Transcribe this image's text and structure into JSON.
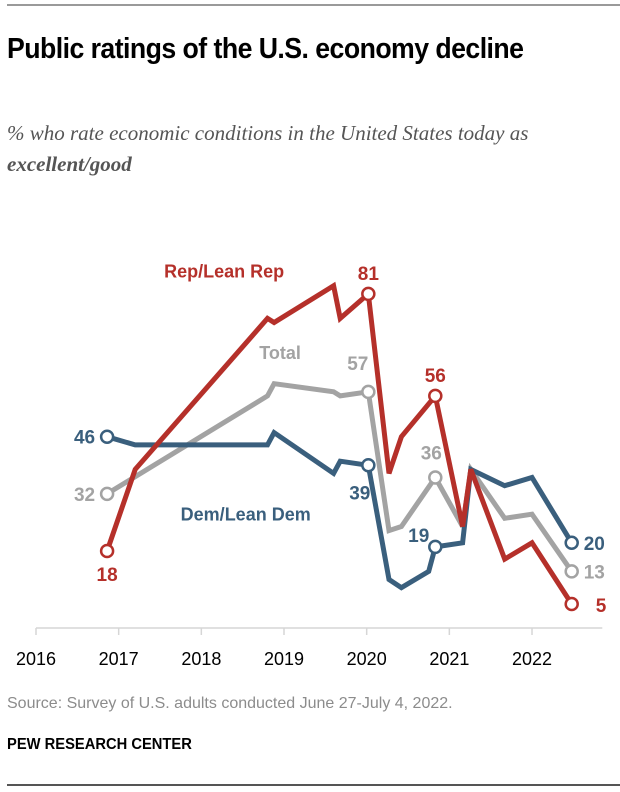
{
  "header": {
    "title": "Public ratings of the U.S. economy decline",
    "subtitle_plain": "% who rate economic conditions in the United States today as ",
    "subtitle_emphasis": "excellent/good"
  },
  "footer": {
    "source": "Source: Survey of U.S. adults conducted June 27-July 4, 2022.",
    "brand": "PEW RESEARCH CENTER"
  },
  "chart_data": {
    "type": "line",
    "title": "Public ratings of the U.S. economy decline",
    "subtitle": "% who rate economic conditions in the United States today as excellent/good",
    "xlabel": "",
    "ylabel": "",
    "x_ticks": [
      2016,
      2017,
      2018,
      2019,
      2020,
      2021,
      2022
    ],
    "x_tick_labels": [
      "2016",
      "2017",
      "2018",
      "2019",
      "2020",
      "2021",
      "2022"
    ],
    "xlim": [
      2016,
      2022.85
    ],
    "ylim": [
      0,
      90
    ],
    "grid": false,
    "legend": "inline labels on lines",
    "series": [
      {
        "name": "Rep/Lean Rep",
        "color": "#b5302a",
        "x": [
          2016.86,
          2017.2,
          2018.8,
          2018.88,
          2019.6,
          2019.68,
          2020.02,
          2020.27,
          2020.42,
          2020.83,
          2021.16,
          2021.26,
          2021.67,
          2022.0,
          2022.48
        ],
        "y": [
          18,
          38,
          75,
          74,
          83,
          75,
          81,
          37,
          46,
          56,
          24,
          38,
          16,
          20,
          5
        ],
        "markers": [
          0,
          6,
          9,
          14
        ],
        "labels": [
          {
            "point": 0,
            "text": "18",
            "pos": "below"
          },
          {
            "point": 6,
            "text": "81",
            "pos": "above"
          },
          {
            "point": 9,
            "text": "56",
            "pos": "above"
          },
          {
            "point": 14,
            "text": "5",
            "pos": "right"
          }
        ]
      },
      {
        "name": "Total",
        "color": "#a3a3a3",
        "x": [
          2016.86,
          2018.8,
          2018.88,
          2019.6,
          2019.68,
          2020.02,
          2020.27,
          2020.42,
          2020.83,
          2021.16,
          2021.26,
          2021.67,
          2022.0,
          2022.48
        ],
        "y": [
          32,
          56,
          59,
          57,
          56,
          57,
          23,
          24,
          36,
          24,
          38,
          26,
          27,
          13
        ],
        "markers": [
          0,
          5,
          8,
          13
        ],
        "labels": [
          {
            "point": 0,
            "text": "32",
            "pos": "left"
          },
          {
            "point": 5,
            "text": "57",
            "pos": "above-left"
          },
          {
            "point": 8,
            "text": "36",
            "pos": "above"
          },
          {
            "point": 13,
            "text": "13",
            "pos": "right"
          }
        ]
      },
      {
        "name": "Dem/Lean Dem",
        "color": "#3a5f7d",
        "x": [
          2016.86,
          2017.2,
          2018.8,
          2018.88,
          2019.6,
          2019.68,
          2020.02,
          2020.27,
          2020.42,
          2020.75,
          2020.83,
          2021.16,
          2021.26,
          2021.67,
          2022.0,
          2022.48
        ],
        "y": [
          46,
          44,
          44,
          47,
          37,
          40,
          39,
          11,
          9,
          13,
          19,
          20,
          38,
          34,
          36,
          20
        ],
        "markers": [
          0,
          6,
          10,
          15
        ],
        "labels": [
          {
            "point": 0,
            "text": "46",
            "pos": "left"
          },
          {
            "point": 6,
            "text": "39",
            "pos": "below-left"
          },
          {
            "point": 10,
            "text": "19",
            "pos": "left"
          },
          {
            "point": 15,
            "text": "20",
            "pos": "right"
          }
        ]
      }
    ],
    "series_labels": [
      {
        "series": "Rep/Lean Rep",
        "text": "Rep/Lean Rep",
        "anchor_x": 2017.55,
        "anchor_y": 85
      },
      {
        "series": "Total",
        "text": "Total",
        "anchor_x": 2018.7,
        "anchor_y": 65
      },
      {
        "series": "Dem/Lean Dem",
        "text": "Dem/Lean Dem",
        "anchor_x": 2017.75,
        "anchor_y": 25.5
      }
    ]
  }
}
